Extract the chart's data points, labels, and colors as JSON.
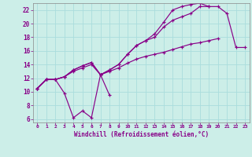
{
  "xlabel": "Windchill (Refroidissement éolien,°C)",
  "bg_color": "#cceee8",
  "line_color": "#880088",
  "grid_color": "#aadddd",
  "xlim": [
    -0.5,
    23.5
  ],
  "ylim": [
    5.5,
    23.0
  ],
  "xticks": [
    0,
    1,
    2,
    3,
    4,
    5,
    6,
    7,
    8,
    9,
    10,
    11,
    12,
    13,
    14,
    15,
    16,
    17,
    18,
    19,
    20,
    21,
    22,
    23
  ],
  "yticks": [
    6,
    8,
    10,
    12,
    14,
    16,
    18,
    20,
    22
  ],
  "lines": [
    {
      "x": [
        0,
        1,
        2,
        3,
        4,
        5,
        6,
        7,
        8
      ],
      "y": [
        10.5,
        11.8,
        11.8,
        9.8,
        6.2,
        7.2,
        6.2,
        12.5,
        9.5
      ]
    },
    {
      "x": [
        0,
        1,
        2,
        3,
        4,
        5,
        6,
        7,
        8,
        9,
        10,
        11,
        12,
        13,
        14,
        15,
        16,
        17,
        18,
        19,
        20
      ],
      "y": [
        10.5,
        11.8,
        11.8,
        12.2,
        13.0,
        13.5,
        14.0,
        12.5,
        13.0,
        13.5,
        14.2,
        14.8,
        15.2,
        15.5,
        15.8,
        16.2,
        16.6,
        17.0,
        17.2,
        17.5,
        17.8
      ]
    },
    {
      "x": [
        0,
        1,
        2,
        3,
        4,
        5,
        6,
        7,
        8,
        9,
        10,
        11,
        12,
        13,
        14,
        15,
        16,
        17,
        18,
        19,
        20,
        21,
        22,
        23
      ],
      "y": [
        10.5,
        11.8,
        11.8,
        12.2,
        13.2,
        13.8,
        14.3,
        12.5,
        13.2,
        14.0,
        15.5,
        16.8,
        17.5,
        18.0,
        19.5,
        20.5,
        21.0,
        21.5,
        22.5,
        22.5,
        22.5,
        21.5,
        16.5,
        16.5
      ]
    },
    {
      "x": [
        0,
        1,
        2,
        3,
        4,
        5,
        6,
        7,
        8,
        9,
        10,
        11,
        12,
        13,
        14,
        15,
        16,
        17,
        18,
        19
      ],
      "y": [
        10.5,
        11.8,
        11.8,
        12.2,
        13.2,
        13.8,
        14.3,
        12.5,
        13.2,
        14.0,
        15.5,
        16.8,
        17.5,
        18.5,
        20.2,
        22.0,
        22.5,
        22.8,
        23.0,
        22.5
      ]
    }
  ]
}
